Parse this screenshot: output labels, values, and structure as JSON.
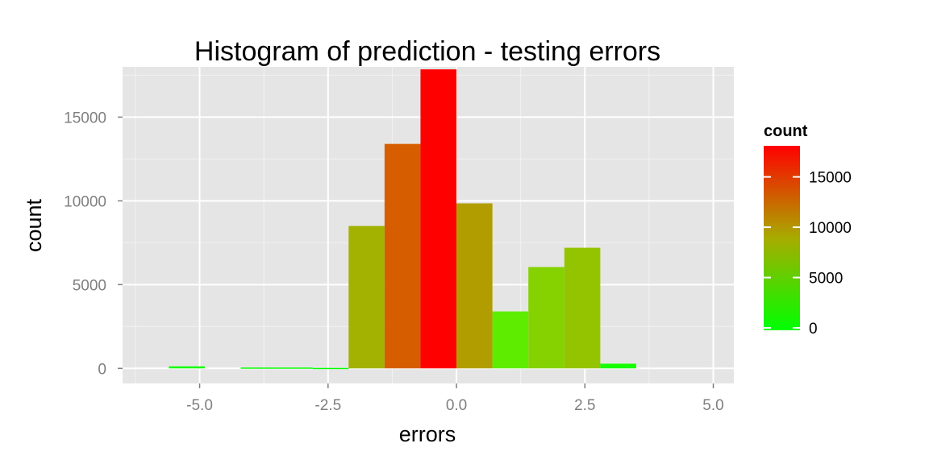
{
  "chart_data": {
    "type": "bar",
    "title": "Histogram of prediction - testing errors",
    "xlabel": "errors",
    "ylabel": "count",
    "xlim": [
      -6.5,
      5.4
    ],
    "ylim": [
      -900,
      18000
    ],
    "x_ticks": [
      -5.0,
      -2.5,
      0.0,
      2.5,
      5.0
    ],
    "x_tick_labels": [
      "-5.0",
      "-2.5",
      "0.0",
      "2.5",
      "5.0"
    ],
    "y_ticks": [
      0,
      5000,
      10000,
      15000
    ],
    "y_tick_labels": [
      "0",
      "5000",
      "10000",
      "15000"
    ],
    "bins": [
      {
        "x0": -5.6,
        "x1": -4.9,
        "count": 120
      },
      {
        "x0": -4.9,
        "x1": -4.2,
        "count": 0
      },
      {
        "x0": -4.2,
        "x1": -3.5,
        "count": 50
      },
      {
        "x0": -3.5,
        "x1": -2.8,
        "count": 50
      },
      {
        "x0": -2.8,
        "x1": -2.1,
        "count": 30
      },
      {
        "x0": -2.1,
        "x1": -1.4,
        "count": 8500
      },
      {
        "x0": -1.4,
        "x1": -0.7,
        "count": 13400
      },
      {
        "x0": -0.7,
        "x1": 0.0,
        "count": 17850
      },
      {
        "x0": 0.0,
        "x1": 0.7,
        "count": 9850
      },
      {
        "x0": 0.7,
        "x1": 1.4,
        "count": 3400
      },
      {
        "x0": 1.4,
        "x1": 2.1,
        "count": 6050
      },
      {
        "x0": 2.1,
        "x1": 2.8,
        "count": 7200
      },
      {
        "x0": 2.8,
        "x1": 3.5,
        "count": 280
      }
    ],
    "grid": true,
    "legend": {
      "title": "count",
      "placement": "right",
      "ticks": [
        0,
        5000,
        10000,
        15000
      ],
      "tick_labels": [
        "0",
        "5000",
        "10000",
        "15000"
      ],
      "range": [
        0,
        17850
      ],
      "low_color": "#00ff00",
      "high_color": "#ff0000"
    },
    "colors": {
      "panel_background": "#e5e5e5",
      "grid_major": "#ffffff",
      "grid_minor": "#f2f2f2"
    }
  }
}
